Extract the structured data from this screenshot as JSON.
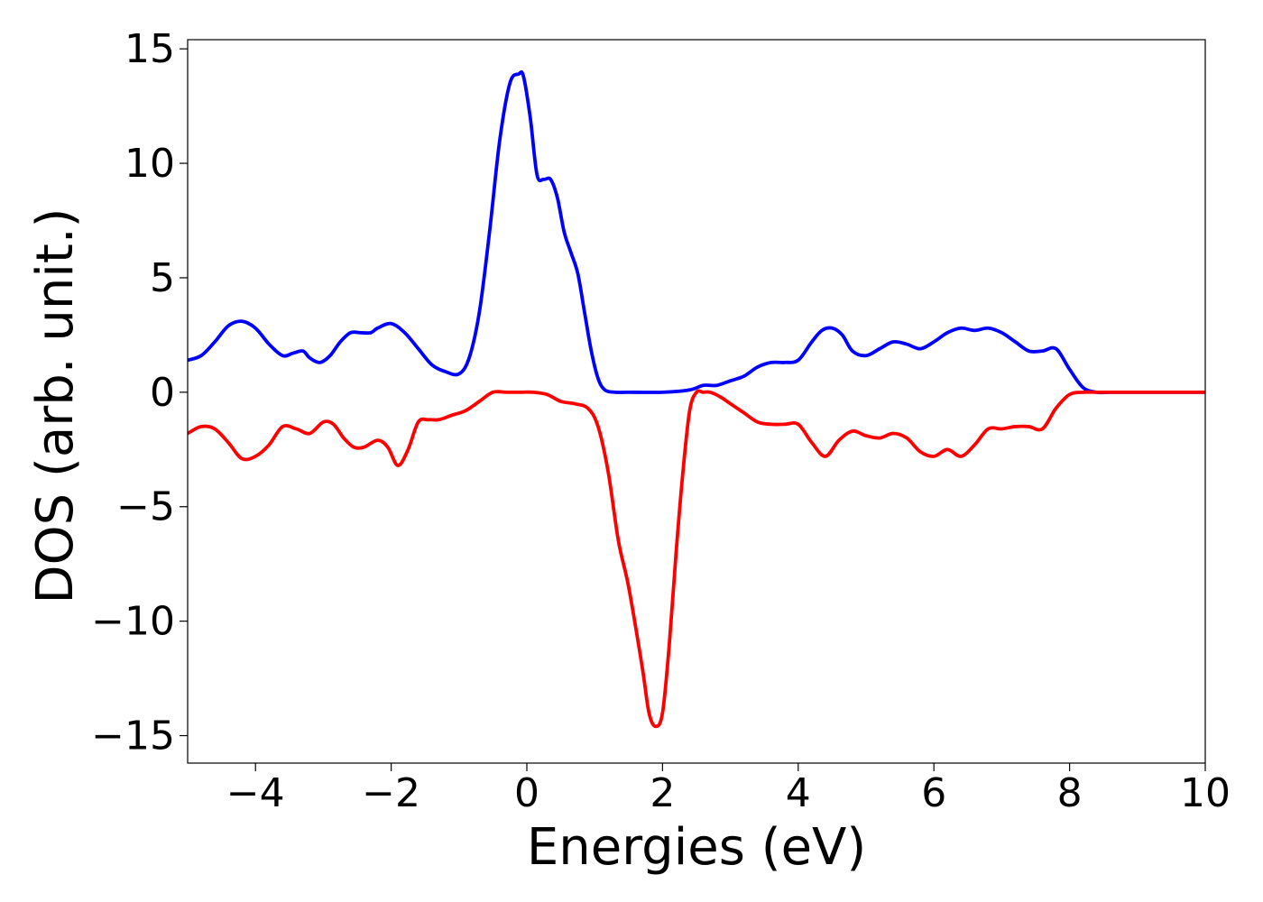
{
  "chart_data": {
    "type": "line",
    "xlabel": "Energies (eV)",
    "ylabel": "DOS (arb. unit.)",
    "xlim": [
      -5,
      10
    ],
    "ylim": [
      -16.2,
      15.4
    ],
    "xticks": [
      -4,
      -2,
      0,
      2,
      4,
      6,
      8,
      10
    ],
    "yticks": [
      -15,
      -10,
      -5,
      0,
      5,
      10,
      15
    ],
    "xtick_labels": [
      "−4",
      "−2",
      "0",
      "2",
      "4",
      "6",
      "8",
      "10"
    ],
    "ytick_labels": [
      "−15",
      "−10",
      "−5",
      "0",
      "5",
      "10",
      "15"
    ],
    "grid": false,
    "series": [
      {
        "color": "#0000ff",
        "x": [
          -5.0,
          -4.8,
          -4.6,
          -4.4,
          -4.2,
          -4.0,
          -3.8,
          -3.6,
          -3.45,
          -3.3,
          -3.2,
          -3.05,
          -2.9,
          -2.75,
          -2.6,
          -2.45,
          -2.3,
          -2.2,
          -2.0,
          -1.8,
          -1.6,
          -1.4,
          -1.2,
          -1.0,
          -0.85,
          -0.7,
          -0.55,
          -0.4,
          -0.25,
          -0.12,
          -0.05,
          0.05,
          0.15,
          0.25,
          0.35,
          0.45,
          0.55,
          0.65,
          0.75,
          0.85,
          0.95,
          1.05,
          1.15,
          1.3,
          1.5,
          2.0,
          2.4,
          2.6,
          2.8,
          3.0,
          3.2,
          3.4,
          3.6,
          3.8,
          4.0,
          4.2,
          4.35,
          4.5,
          4.65,
          4.8,
          5.0,
          5.2,
          5.4,
          5.6,
          5.8,
          6.0,
          6.2,
          6.4,
          6.6,
          6.8,
          7.0,
          7.2,
          7.4,
          7.6,
          7.8,
          8.0,
          8.2,
          8.4,
          8.6,
          9.0,
          10.0
        ],
        "y": [
          1.4,
          1.6,
          2.2,
          2.9,
          3.1,
          2.8,
          2.1,
          1.6,
          1.7,
          1.8,
          1.5,
          1.3,
          1.6,
          2.2,
          2.6,
          2.6,
          2.6,
          2.8,
          3.0,
          2.6,
          1.9,
          1.2,
          0.9,
          0.8,
          1.5,
          3.5,
          7.0,
          11.0,
          13.5,
          13.9,
          13.8,
          12.0,
          9.5,
          9.3,
          9.3,
          8.5,
          7.0,
          6.1,
          5.2,
          3.5,
          1.8,
          0.6,
          0.1,
          0.0,
          0.0,
          0.0,
          0.1,
          0.3,
          0.3,
          0.5,
          0.7,
          1.1,
          1.3,
          1.3,
          1.4,
          2.2,
          2.7,
          2.8,
          2.5,
          1.8,
          1.6,
          1.9,
          2.2,
          2.1,
          1.9,
          2.2,
          2.6,
          2.8,
          2.7,
          2.8,
          2.6,
          2.2,
          1.8,
          1.8,
          1.9,
          1.0,
          0.2,
          0.0,
          0.0,
          0.0,
          0.0
        ]
      },
      {
        "color": "#ff0000",
        "x": [
          -5.0,
          -4.8,
          -4.6,
          -4.4,
          -4.2,
          -4.0,
          -3.8,
          -3.6,
          -3.4,
          -3.2,
          -3.0,
          -2.85,
          -2.7,
          -2.55,
          -2.4,
          -2.2,
          -2.05,
          -1.9,
          -1.75,
          -1.6,
          -1.45,
          -1.3,
          -1.1,
          -0.9,
          -0.7,
          -0.5,
          -0.3,
          -0.1,
          0.1,
          0.3,
          0.5,
          0.7,
          0.9,
          1.05,
          1.2,
          1.35,
          1.5,
          1.7,
          1.8,
          1.9,
          2.0,
          2.1,
          2.2,
          2.3,
          2.4,
          2.5,
          2.6,
          2.7,
          2.85,
          3.0,
          3.2,
          3.4,
          3.6,
          3.8,
          4.0,
          4.2,
          4.4,
          4.6,
          4.8,
          5.0,
          5.2,
          5.4,
          5.6,
          5.8,
          6.0,
          6.2,
          6.4,
          6.6,
          6.8,
          7.0,
          7.2,
          7.4,
          7.6,
          7.8,
          8.0,
          8.2,
          8.4,
          8.6,
          8.8,
          9.0,
          9.5,
          10.0
        ],
        "y": [
          -1.8,
          -1.5,
          -1.6,
          -2.2,
          -2.9,
          -2.8,
          -2.3,
          -1.5,
          -1.6,
          -1.8,
          -1.3,
          -1.4,
          -2.0,
          -2.4,
          -2.4,
          -2.1,
          -2.4,
          -3.2,
          -2.5,
          -1.3,
          -1.2,
          -1.2,
          -1.0,
          -0.8,
          -0.4,
          0.0,
          0.0,
          0.0,
          0.0,
          -0.1,
          -0.4,
          -0.5,
          -0.7,
          -1.5,
          -3.5,
          -6.5,
          -8.5,
          -12.0,
          -14.0,
          -14.6,
          -14.0,
          -11.0,
          -7.0,
          -3.5,
          -0.8,
          0.0,
          0.0,
          0.0,
          -0.2,
          -0.5,
          -0.9,
          -1.3,
          -1.4,
          -1.4,
          -1.4,
          -2.2,
          -2.8,
          -2.1,
          -1.7,
          -1.9,
          -2.0,
          -1.8,
          -2.0,
          -2.6,
          -2.8,
          -2.5,
          -2.8,
          -2.3,
          -1.6,
          -1.6,
          -1.5,
          -1.5,
          -1.6,
          -0.7,
          -0.1,
          0.0,
          0.0,
          0.0,
          0.0,
          0.0,
          0.0,
          0.0
        ]
      }
    ]
  }
}
